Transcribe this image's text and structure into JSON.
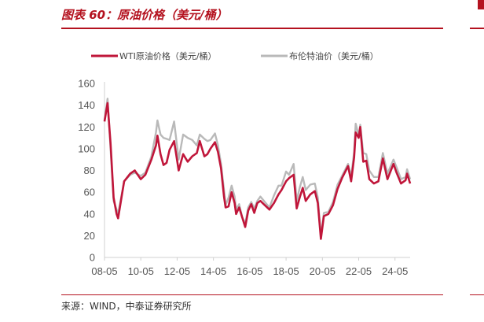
{
  "header": {
    "figure_title": "图表 60：原油价格（美元/桶）"
  },
  "footer": {
    "source": "来源：WIND，中泰证券研究所"
  },
  "colors": {
    "accent": "#b4121f",
    "wti": "#c0163a",
    "brent": "#b9b9b9",
    "axis": "#d0d0d0"
  },
  "chart_data": {
    "type": "line",
    "title": "",
    "xlabel": "",
    "ylabel": "",
    "ylim": [
      0,
      160
    ],
    "yticks": [
      "0",
      "20",
      "40",
      "60",
      "80",
      "100",
      "120",
      "140",
      "160"
    ],
    "xticks": [
      "08-05",
      "10-05",
      "12-05",
      "14-05",
      "16-05",
      "18-05",
      "20-05",
      "22-05",
      "24-05"
    ],
    "xlim": [
      "2008-05",
      "2025-03"
    ],
    "grid": false,
    "legend_position": "top",
    "series": [
      {
        "name": "WTI原油价格（美元/桶）",
        "color": "#c0163a",
        "points": [
          [
            "2008-05",
            125
          ],
          [
            "2008-07",
            142
          ],
          [
            "2008-09",
            105
          ],
          [
            "2008-11",
            55
          ],
          [
            "2009-01",
            40
          ],
          [
            "2009-02",
            36
          ],
          [
            "2009-06",
            70
          ],
          [
            "2009-10",
            77
          ],
          [
            "2010-01",
            80
          ],
          [
            "2010-05",
            72
          ],
          [
            "2010-08",
            76
          ],
          [
            "2010-12",
            90
          ],
          [
            "2011-03",
            103
          ],
          [
            "2011-04",
            112
          ],
          [
            "2011-06",
            95
          ],
          [
            "2011-08",
            85
          ],
          [
            "2011-10",
            87
          ],
          [
            "2011-12",
            99
          ],
          [
            "2012-03",
            107
          ],
          [
            "2012-06",
            80
          ],
          [
            "2012-09",
            95
          ],
          [
            "2012-12",
            88
          ],
          [
            "2013-03",
            93
          ],
          [
            "2013-06",
            96
          ],
          [
            "2013-08",
            107
          ],
          [
            "2013-11",
            93
          ],
          [
            "2014-01",
            95
          ],
          [
            "2014-03",
            100
          ],
          [
            "2014-06",
            106
          ],
          [
            "2014-08",
            97
          ],
          [
            "2014-10",
            82
          ],
          [
            "2014-12",
            56
          ],
          [
            "2015-01",
            46
          ],
          [
            "2015-03",
            47
          ],
          [
            "2015-05",
            60
          ],
          [
            "2015-07",
            50
          ],
          [
            "2015-08",
            40
          ],
          [
            "2015-10",
            46
          ],
          [
            "2015-12",
            37
          ],
          [
            "2016-02",
            28
          ],
          [
            "2016-04",
            43
          ],
          [
            "2016-06",
            49
          ],
          [
            "2016-08",
            41
          ],
          [
            "2016-10",
            50
          ],
          [
            "2016-12",
            52
          ],
          [
            "2017-03",
            48
          ],
          [
            "2017-06",
            44
          ],
          [
            "2017-09",
            50
          ],
          [
            "2017-12",
            58
          ],
          [
            "2018-02",
            62
          ],
          [
            "2018-05",
            70
          ],
          [
            "2018-07",
            73
          ],
          [
            "2018-10",
            76
          ],
          [
            "2018-12",
            45
          ],
          [
            "2019-02",
            55
          ],
          [
            "2019-04",
            64
          ],
          [
            "2019-06",
            52
          ],
          [
            "2019-09",
            58
          ],
          [
            "2019-12",
            61
          ],
          [
            "2020-02",
            50
          ],
          [
            "2020-04",
            17
          ],
          [
            "2020-06",
            38
          ],
          [
            "2020-09",
            40
          ],
          [
            "2020-12",
            48
          ],
          [
            "2021-03",
            63
          ],
          [
            "2021-06",
            73
          ],
          [
            "2021-10",
            84
          ],
          [
            "2021-12",
            70
          ],
          [
            "2022-02",
            92
          ],
          [
            "2022-03",
            115
          ],
          [
            "2022-05",
            110
          ],
          [
            "2022-06",
            120
          ],
          [
            "2022-08",
            88
          ],
          [
            "2022-10",
            89
          ],
          [
            "2022-12",
            72
          ],
          [
            "2023-03",
            68
          ],
          [
            "2023-06",
            70
          ],
          [
            "2023-09",
            91
          ],
          [
            "2023-12",
            72
          ],
          [
            "2024-04",
            86
          ],
          [
            "2024-06",
            78
          ],
          [
            "2024-09",
            68
          ],
          [
            "2024-12",
            71
          ],
          [
            "2025-01",
            77
          ],
          [
            "2025-03",
            68
          ]
        ]
      },
      {
        "name": "布伦特油价（美元/桶）",
        "color": "#b9b9b9",
        "points": [
          [
            "2008-05",
            126
          ],
          [
            "2008-07",
            146
          ],
          [
            "2008-09",
            100
          ],
          [
            "2008-11",
            52
          ],
          [
            "2009-01",
            44
          ],
          [
            "2009-02",
            40
          ],
          [
            "2009-06",
            70
          ],
          [
            "2009-10",
            76
          ],
          [
            "2010-01",
            78
          ],
          [
            "2010-05",
            75
          ],
          [
            "2010-08",
            78
          ],
          [
            "2010-12",
            93
          ],
          [
            "2011-03",
            115
          ],
          [
            "2011-04",
            126
          ],
          [
            "2011-06",
            113
          ],
          [
            "2011-08",
            110
          ],
          [
            "2011-10",
            109
          ],
          [
            "2011-12",
            108
          ],
          [
            "2012-03",
            125
          ],
          [
            "2012-06",
            90
          ],
          [
            "2012-09",
            113
          ],
          [
            "2012-12",
            110
          ],
          [
            "2013-03",
            108
          ],
          [
            "2013-06",
            103
          ],
          [
            "2013-08",
            113
          ],
          [
            "2013-11",
            109
          ],
          [
            "2014-01",
            107
          ],
          [
            "2014-03",
            108
          ],
          [
            "2014-06",
            114
          ],
          [
            "2014-08",
            103
          ],
          [
            "2014-10",
            86
          ],
          [
            "2014-12",
            62
          ],
          [
            "2015-01",
            48
          ],
          [
            "2015-03",
            55
          ],
          [
            "2015-05",
            66
          ],
          [
            "2015-07",
            56
          ],
          [
            "2015-08",
            44
          ],
          [
            "2015-10",
            49
          ],
          [
            "2015-12",
            37
          ],
          [
            "2016-02",
            31
          ],
          [
            "2016-04",
            46
          ],
          [
            "2016-06",
            51
          ],
          [
            "2016-08",
            45
          ],
          [
            "2016-10",
            52
          ],
          [
            "2016-12",
            56
          ],
          [
            "2017-03",
            51
          ],
          [
            "2017-06",
            46
          ],
          [
            "2017-09",
            57
          ],
          [
            "2017-12",
            66
          ],
          [
            "2018-02",
            66
          ],
          [
            "2018-05",
            79
          ],
          [
            "2018-07",
            76
          ],
          [
            "2018-10",
            86
          ],
          [
            "2018-12",
            52
          ],
          [
            "2019-02",
            64
          ],
          [
            "2019-04",
            74
          ],
          [
            "2019-06",
            62
          ],
          [
            "2019-09",
            67
          ],
          [
            "2019-12",
            68
          ],
          [
            "2020-02",
            55
          ],
          [
            "2020-04",
            20
          ],
          [
            "2020-06",
            41
          ],
          [
            "2020-09",
            42
          ],
          [
            "2020-12",
            51
          ],
          [
            "2021-03",
            67
          ],
          [
            "2021-06",
            75
          ],
          [
            "2021-10",
            86
          ],
          [
            "2021-12",
            74
          ],
          [
            "2022-02",
            97
          ],
          [
            "2022-03",
            123
          ],
          [
            "2022-05",
            112
          ],
          [
            "2022-06",
            122
          ],
          [
            "2022-08",
            96
          ],
          [
            "2022-10",
            95
          ],
          [
            "2022-12",
            80
          ],
          [
            "2023-03",
            74
          ],
          [
            "2023-06",
            74
          ],
          [
            "2023-09",
            96
          ],
          [
            "2023-12",
            77
          ],
          [
            "2024-04",
            90
          ],
          [
            "2024-06",
            83
          ],
          [
            "2024-09",
            72
          ],
          [
            "2024-12",
            74
          ],
          [
            "2025-01",
            81
          ],
          [
            "2025-03",
            72
          ]
        ]
      }
    ]
  }
}
